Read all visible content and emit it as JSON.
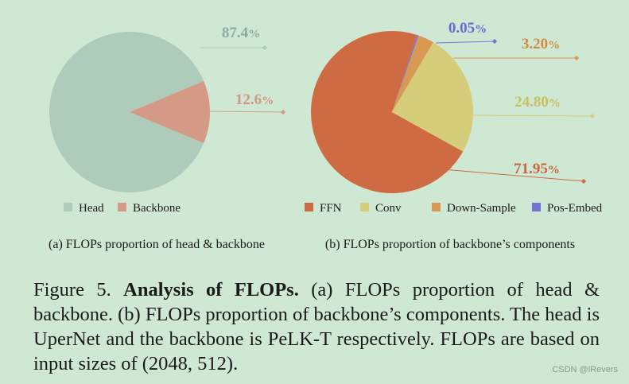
{
  "chart_data": [
    {
      "type": "pie",
      "caption": "(a) FLOPs proportion of head & backbone",
      "slices": [
        {
          "name": "Head",
          "value": 87.4,
          "label_num": "87.4",
          "label_unit": "%",
          "color": "#afcbbb",
          "label_color": "#8faaa3"
        },
        {
          "name": "Backbone",
          "value": 12.6,
          "label_num": "12.6",
          "label_unit": "%",
          "color": "#d59a86",
          "label_color": "#d39686"
        }
      ]
    },
    {
      "type": "pie",
      "caption": "(b) FLOPs proportion of backbone’s components",
      "slices": [
        {
          "name": "FFN",
          "value": 71.95,
          "label_num": "71.95",
          "label_unit": "%",
          "color": "#cf6b42",
          "label_color": "#c7673f"
        },
        {
          "name": "Conv",
          "value": 24.8,
          "label_num": "24.80",
          "label_unit": "%",
          "color": "#d5cd79",
          "label_color": "#c9bf5e"
        },
        {
          "name": "Down-Sample",
          "value": 3.2,
          "label_num": "3.20",
          "label_unit": "%",
          "color": "#d99854",
          "label_color": "#d08c45"
        },
        {
          "name": "Pos-Embed",
          "value": 0.05,
          "label_num": "0.05",
          "label_unit": "%",
          "color": "#7474d6",
          "label_color": "#6a6ad6"
        }
      ]
    }
  ],
  "caption": {
    "prefix": "Figure 5.",
    "bold": "Analysis of FLOPs.",
    "rest": "(a) FLOPs proportion of head & backbone. (b) FLOPs proportion of backbone’s components. The head is UperNet and the backbone is PeLK-T respectively. FLOPs are based on input sizes of (2048, 512)."
  },
  "watermark": "CSDN @lRevers"
}
